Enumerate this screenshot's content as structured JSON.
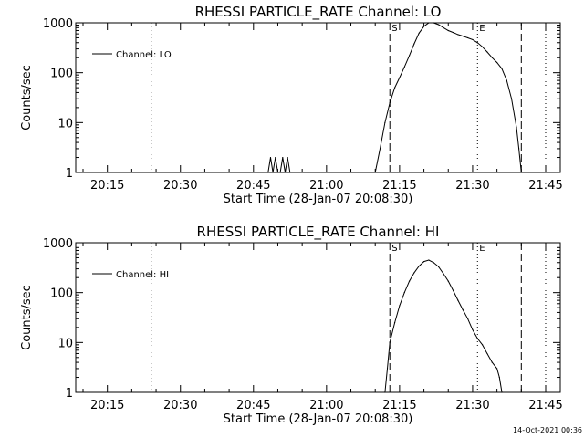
{
  "chart_data": [
    {
      "type": "line",
      "title": "RHESSI PARTICLE_RATE Channel: LO",
      "xlabel": "Start Time (28-Jan-07 20:08:30)",
      "ylabel": "Counts/sec",
      "yscale": "log",
      "ylim": [
        1,
        1000
      ],
      "xlim": [
        "20:08:30",
        "21:48:00"
      ],
      "x_ticks": [
        "20:15",
        "20:30",
        "20:45",
        "21:00",
        "21:15",
        "21:30",
        "21:45"
      ],
      "y_ticks": [
        "1",
        "10",
        "100",
        "1000"
      ],
      "grid": false,
      "legend_position": "top-left",
      "series": [
        {
          "name": "Channel: LO",
          "x": [
            "20:48:00",
            "20:48:30",
            "20:49:00",
            "20:49:30",
            "20:50:00",
            "20:50:30",
            "20:51:00",
            "20:51:30",
            "20:52:00",
            "20:52:30",
            "21:10:00",
            "21:11:00",
            "21:12:00",
            "21:13:00",
            "21:14:00",
            "21:15:00",
            "21:16:00",
            "21:17:00",
            "21:18:00",
            "21:19:00",
            "21:20:00",
            "21:21:00",
            "21:22:00",
            "21:23:00",
            "21:24:00",
            "21:25:00",
            "21:26:00",
            "21:27:00",
            "21:28:00",
            "21:29:00",
            "21:30:00",
            "21:31:00",
            "21:32:00",
            "21:33:00",
            "21:34:00",
            "21:35:00",
            "21:36:00",
            "21:37:00",
            "21:38:00",
            "21:39:00",
            "21:39:30",
            "21:40:00"
          ],
          "y": [
            1,
            2,
            1,
            2,
            1,
            1,
            2,
            1,
            2,
            1,
            1,
            3,
            10,
            25,
            50,
            80,
            130,
            220,
            380,
            620,
            850,
            1000,
            1000,
            920,
            800,
            700,
            640,
            580,
            540,
            500,
            460,
            400,
            330,
            260,
            200,
            160,
            120,
            70,
            30,
            8,
            3,
            1
          ]
        }
      ],
      "annotations": [
        {
          "label": "S",
          "x": "21:13:00",
          "style": "dashed"
        },
        {
          "label": "E",
          "x": "21:31:00",
          "style": "dotted"
        },
        {
          "label": "",
          "x": "21:40:00",
          "style": "dashed"
        },
        {
          "label": "",
          "x": "20:24:00",
          "style": "dotted"
        },
        {
          "label": "",
          "x": "21:45:00",
          "style": "dotted"
        }
      ]
    },
    {
      "type": "line",
      "title": "RHESSI PARTICLE_RATE Channel: HI",
      "xlabel": "Start Time (28-Jan-07 20:08:30)",
      "ylabel": "Counts/sec",
      "yscale": "log",
      "ylim": [
        1,
        1000
      ],
      "xlim": [
        "20:08:30",
        "21:48:00"
      ],
      "x_ticks": [
        "20:15",
        "20:30",
        "20:45",
        "21:00",
        "21:15",
        "21:30",
        "21:45"
      ],
      "y_ticks": [
        "1",
        "10",
        "100",
        "1000"
      ],
      "grid": false,
      "legend_position": "top-left",
      "series": [
        {
          "name": "Channel: HI",
          "x": [
            "21:12:00",
            "21:12:30",
            "21:13:00",
            "21:14:00",
            "21:15:00",
            "21:16:00",
            "21:17:00",
            "21:18:00",
            "21:19:00",
            "21:20:00",
            "21:21:00",
            "21:22:00",
            "21:23:00",
            "21:24:00",
            "21:25:00",
            "21:26:00",
            "21:27:00",
            "21:28:00",
            "21:29:00",
            "21:30:00",
            "21:31:00",
            "21:32:00",
            "21:33:00",
            "21:34:00",
            "21:35:00",
            "21:35:30",
            "21:36:00"
          ],
          "y": [
            1,
            3,
            10,
            25,
            55,
            100,
            170,
            250,
            340,
            420,
            450,
            400,
            330,
            240,
            170,
            110,
            70,
            45,
            30,
            18,
            12,
            9,
            6,
            4,
            3,
            2,
            1
          ]
        }
      ],
      "annotations": [
        {
          "label": "S",
          "x": "21:13:00",
          "style": "dashed"
        },
        {
          "label": "E",
          "x": "21:31:00",
          "style": "dotted"
        },
        {
          "label": "",
          "x": "21:40:00",
          "style": "dashed"
        },
        {
          "label": "",
          "x": "20:24:00",
          "style": "dotted"
        },
        {
          "label": "",
          "x": "21:45:00",
          "style": "dotted"
        }
      ]
    }
  ],
  "footer": {
    "timestamp": "14-Oct-2021 00:36"
  }
}
